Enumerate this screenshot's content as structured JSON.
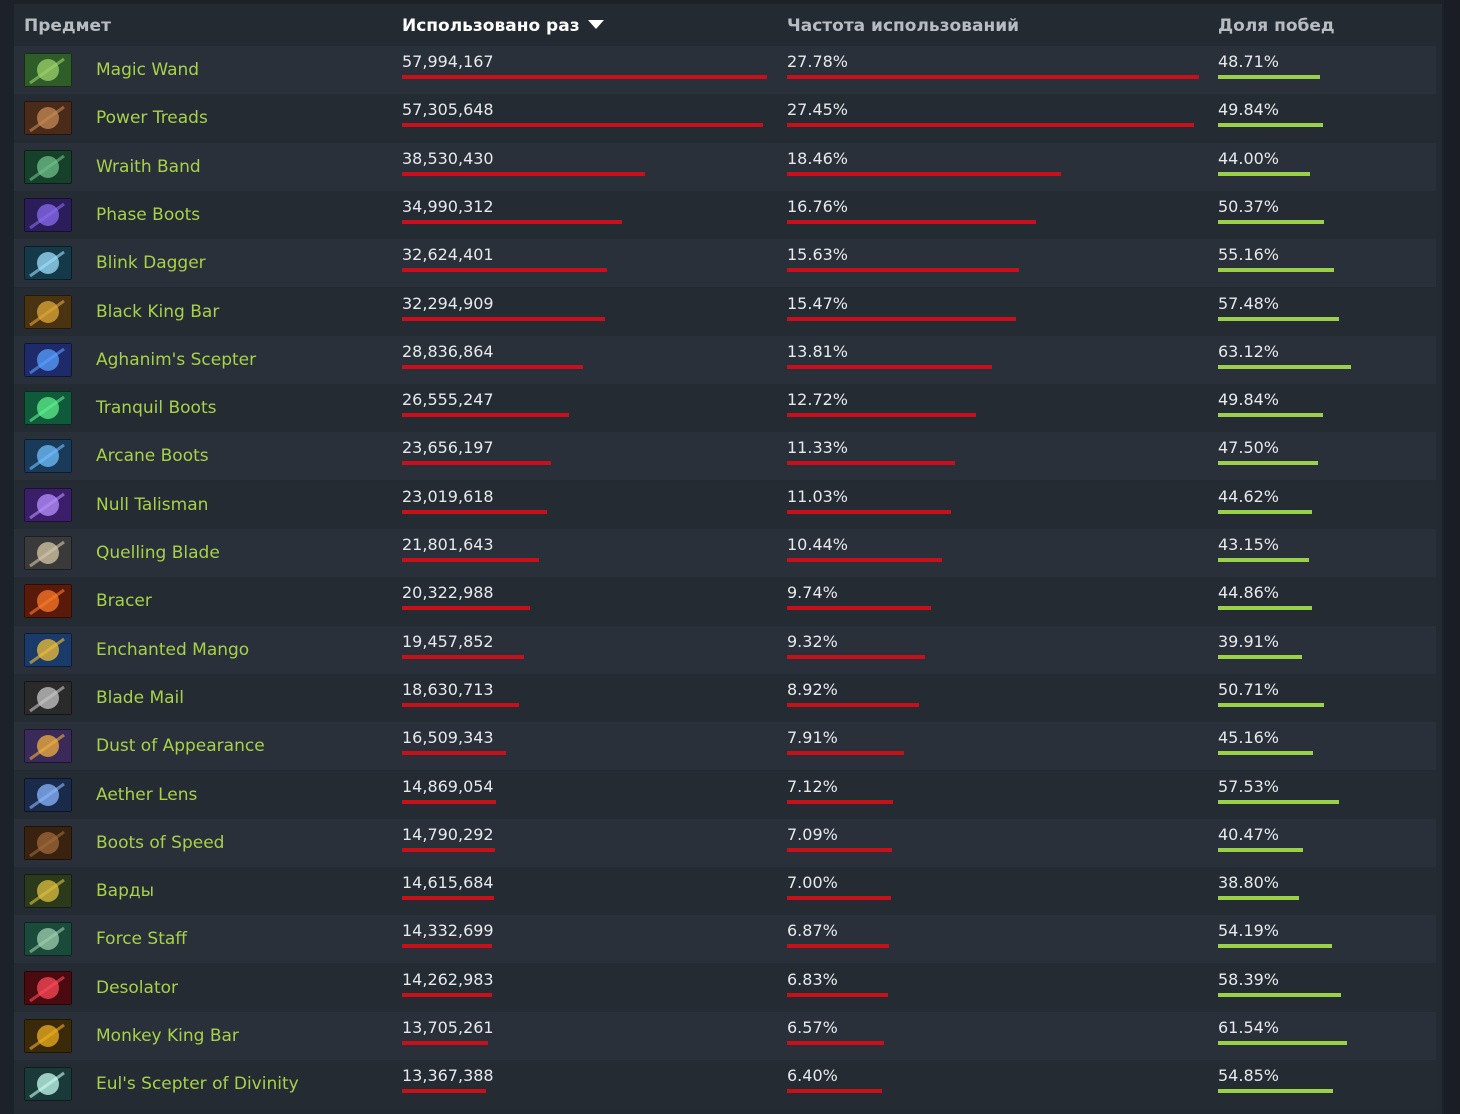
{
  "header": {
    "item": "Предмет",
    "uses": "Использовано раз",
    "frequency": "Частота использований",
    "winrate": "Доля побед"
  },
  "sort": {
    "column": "uses",
    "direction": "desc"
  },
  "colors": {
    "item_name": "#a7d14a",
    "uses_bar": "#c8101a",
    "winrate_bar": "#9bd14a"
  },
  "items": [
    {
      "name": "Magic Wand",
      "uses": "57,994,167",
      "frequency": "27.78%",
      "winrate": "48.71%",
      "icon": "magic-wand-icon"
    },
    {
      "name": "Power Treads",
      "uses": "57,305,648",
      "frequency": "27.45%",
      "winrate": "49.84%",
      "icon": "power-treads-icon"
    },
    {
      "name": "Wraith Band",
      "uses": "38,530,430",
      "frequency": "18.46%",
      "winrate": "44.00%",
      "icon": "wraith-band-icon"
    },
    {
      "name": "Phase Boots",
      "uses": "34,990,312",
      "frequency": "16.76%",
      "winrate": "50.37%",
      "icon": "phase-boots-icon"
    },
    {
      "name": "Blink Dagger",
      "uses": "32,624,401",
      "frequency": "15.63%",
      "winrate": "55.16%",
      "icon": "blink-dagger-icon"
    },
    {
      "name": "Black King Bar",
      "uses": "32,294,909",
      "frequency": "15.47%",
      "winrate": "57.48%",
      "icon": "black-king-bar-icon"
    },
    {
      "name": "Aghanim's Scepter",
      "uses": "28,836,864",
      "frequency": "13.81%",
      "winrate": "63.12%",
      "icon": "aghanims-scepter-icon"
    },
    {
      "name": "Tranquil Boots",
      "uses": "26,555,247",
      "frequency": "12.72%",
      "winrate": "49.84%",
      "icon": "tranquil-boots-icon"
    },
    {
      "name": "Arcane Boots",
      "uses": "23,656,197",
      "frequency": "11.33%",
      "winrate": "47.50%",
      "icon": "arcane-boots-icon"
    },
    {
      "name": "Null Talisman",
      "uses": "23,019,618",
      "frequency": "11.03%",
      "winrate": "44.62%",
      "icon": "null-talisman-icon"
    },
    {
      "name": "Quelling Blade",
      "uses": "21,801,643",
      "frequency": "10.44%",
      "winrate": "43.15%",
      "icon": "quelling-blade-icon"
    },
    {
      "name": "Bracer",
      "uses": "20,322,988",
      "frequency": "9.74%",
      "winrate": "44.86%",
      "icon": "bracer-icon"
    },
    {
      "name": "Enchanted Mango",
      "uses": "19,457,852",
      "frequency": "9.32%",
      "winrate": "39.91%",
      "icon": "enchanted-mango-icon"
    },
    {
      "name": "Blade Mail",
      "uses": "18,630,713",
      "frequency": "8.92%",
      "winrate": "50.71%",
      "icon": "blade-mail-icon"
    },
    {
      "name": "Dust of Appearance",
      "uses": "16,509,343",
      "frequency": "7.91%",
      "winrate": "45.16%",
      "icon": "dust-of-appearance-icon"
    },
    {
      "name": "Aether Lens",
      "uses": "14,869,054",
      "frequency": "7.12%",
      "winrate": "57.53%",
      "icon": "aether-lens-icon"
    },
    {
      "name": "Boots of Speed",
      "uses": "14,790,292",
      "frequency": "7.09%",
      "winrate": "40.47%",
      "icon": "boots-of-speed-icon"
    },
    {
      "name": "Варды",
      "uses": "14,615,684",
      "frequency": "7.00%",
      "winrate": "38.80%",
      "icon": "wards-icon"
    },
    {
      "name": "Force Staff",
      "uses": "14,332,699",
      "frequency": "6.87%",
      "winrate": "54.19%",
      "icon": "force-staff-icon"
    },
    {
      "name": "Desolator",
      "uses": "14,262,983",
      "frequency": "6.83%",
      "winrate": "58.39%",
      "icon": "desolator-icon"
    },
    {
      "name": "Monkey King Bar",
      "uses": "13,705,261",
      "frequency": "6.57%",
      "winrate": "61.54%",
      "icon": "monkey-king-bar-icon"
    },
    {
      "name": "Eul's Scepter of Divinity",
      "uses": "13,367,388",
      "frequency": "6.40%",
      "winrate": "54.85%",
      "icon": "euls-scepter-icon"
    }
  ]
}
